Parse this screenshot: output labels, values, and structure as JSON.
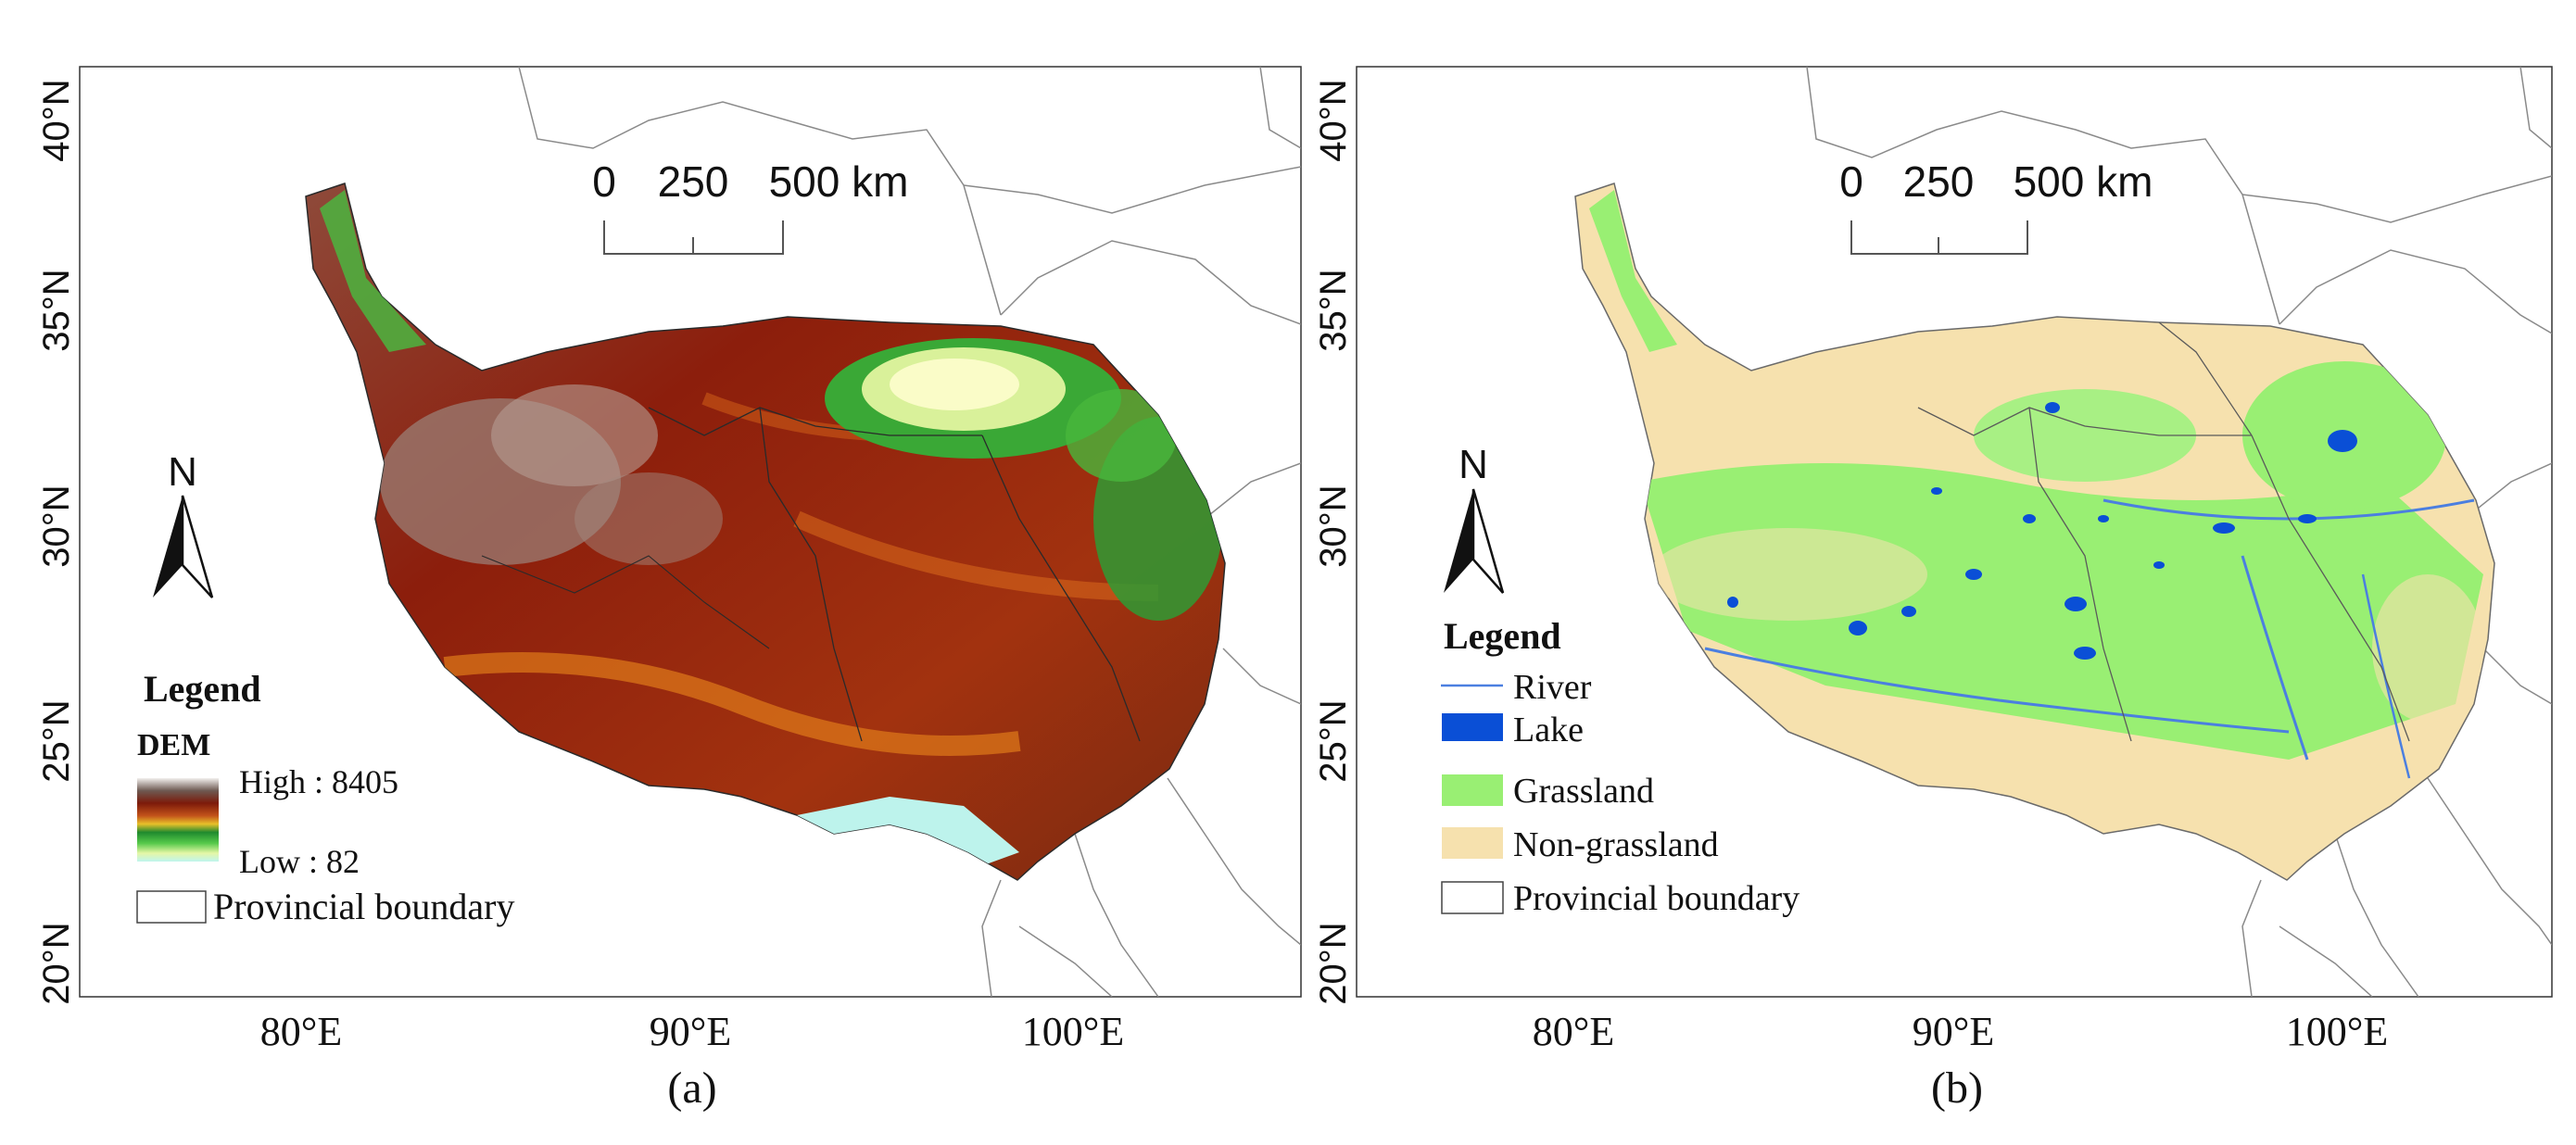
{
  "panels": [
    {
      "id": "a",
      "caption": "(a)",
      "lat_labels": [
        "40°N",
        "35°N",
        "30°N",
        "25°N",
        "20°N"
      ],
      "lon_labels": [
        "80°E",
        "90°E",
        "100°E"
      ],
      "scalebar": {
        "t0": "0",
        "t1": "250",
        "t2": "500 km"
      },
      "north": "N",
      "legend": {
        "title": "Legend",
        "dem_title": "DEM",
        "high": "High : 8405",
        "low": "Low : 82",
        "boundary": "Provincial boundary"
      },
      "dem_range": [
        82,
        8405
      ]
    },
    {
      "id": "b",
      "caption": "(b)",
      "lat_labels": [
        "40°N",
        "35°N",
        "30°N",
        "25°N",
        "20°N"
      ],
      "lon_labels": [
        "80°E",
        "90°E",
        "100°E"
      ],
      "scalebar": {
        "t0": "0",
        "t1": "250",
        "t2": "500 km"
      },
      "north": "N",
      "legend": {
        "title": "Legend",
        "items": [
          "River",
          "Lake",
          "Grassland",
          "Non-grassland",
          "Provincial boundary"
        ]
      }
    }
  ],
  "colors": {
    "lake": "#0a4fd6",
    "river": "#4b7fe0",
    "grassland": "#99ef73",
    "non_grassland": "#f6e1ae",
    "boundary": "#8a8a8a",
    "dem_high": "#e7e2df",
    "dem_mid": "#8e1c0b",
    "dem_low": "#b8f3ea"
  }
}
